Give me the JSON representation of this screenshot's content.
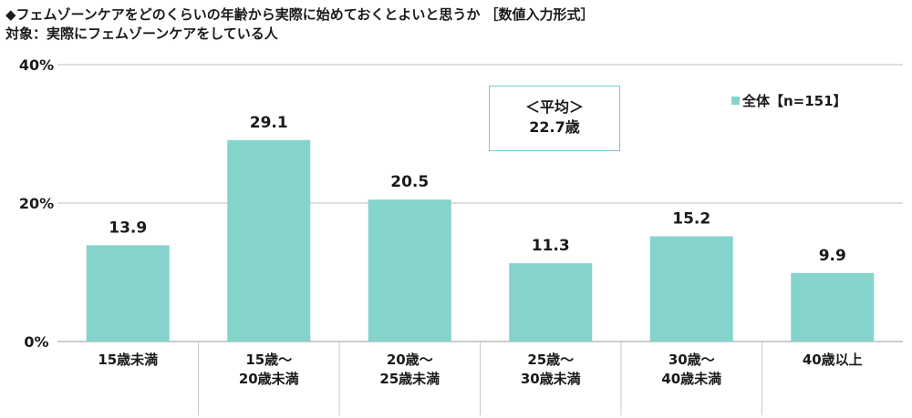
{
  "title": "◆フェムゾーンケアをどのくらいの年齢から実際に始めておくとよいと思うか ［数値入力形式］",
  "subtitle": "対象：実際にフェムゾーンケアをしている人",
  "average": {
    "label": "＜平均＞",
    "value": "22.7歳"
  },
  "colors": {
    "bar": "#84d4cc",
    "grid": "#bfbfbf",
    "box_border": "#6fcfc6"
  },
  "chart_data": {
    "type": "bar",
    "categories": [
      [
        "15歳未満"
      ],
      [
        "15歳～",
        "20歳未満"
      ],
      [
        "20歳～",
        "25歳未満"
      ],
      [
        "25歳～",
        "30歳未満"
      ],
      [
        "30歳～",
        "40歳未満"
      ],
      [
        "40歳以上"
      ]
    ],
    "series": [
      {
        "name": "全体【n=151】",
        "values": [
          13.9,
          29.1,
          20.5,
          11.3,
          15.2,
          9.9
        ]
      }
    ],
    "value_labels": [
      "13.9",
      "29.1",
      "20.5",
      "11.3",
      "15.2",
      "9.9"
    ],
    "ylim": [
      0,
      40
    ],
    "yticks": [
      0,
      20,
      40
    ],
    "ytick_labels": [
      "0%",
      "20%",
      "40%"
    ],
    "grid": true,
    "legend": "top-right"
  }
}
